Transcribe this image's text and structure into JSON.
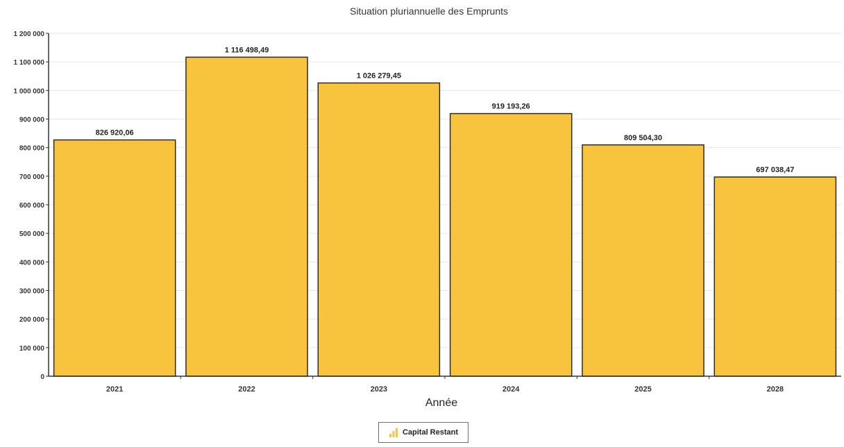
{
  "chart_data": {
    "type": "bar",
    "title": "Situation pluriannuelle des Emprunts",
    "xlabel": "Année",
    "ylabel": "",
    "categories": [
      "2021",
      "2022",
      "2023",
      "2024",
      "2025",
      "2028"
    ],
    "series": [
      {
        "name": "Capital Restant",
        "values": [
          826920.06,
          1116498.49,
          1026279.45,
          919193.26,
          809504.3,
          697038.47
        ],
        "data_labels": [
          "826 920,06",
          "1 116 498,49",
          "1 026 279,45",
          "919 193,26",
          "809 504,30",
          "697 038,47"
        ]
      }
    ],
    "ylim": [
      0,
      1200000
    ],
    "yticks": [
      0,
      100000,
      200000,
      300000,
      400000,
      500000,
      600000,
      700000,
      800000,
      900000,
      1000000,
      1100000,
      1200000
    ],
    "ytick_labels": [
      "0",
      "100 000",
      "200 000",
      "300 000",
      "400 000",
      "500 000",
      "600 000",
      "700 000",
      "800 000",
      "900 000",
      "1 000 000",
      "1 100 000",
      "1 200 000"
    ],
    "grid": true,
    "legend_position": "bottom-center",
    "colors": {
      "bar_fill": "#f9c43d",
      "bar_stroke": "#2b2b2b",
      "grid": "#e6e6e6",
      "axis": "#333333"
    }
  },
  "legend": {
    "label": "Capital Restant",
    "icon": "bar-chart-icon"
  }
}
